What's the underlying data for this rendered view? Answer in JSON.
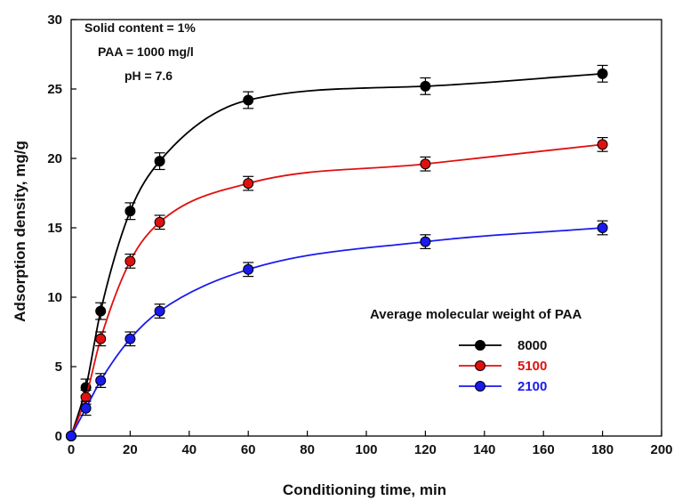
{
  "chart_data": {
    "type": "line",
    "xlabel": "Conditioning time, min",
    "ylabel": "Adsorption density, mg/g",
    "xlim": [
      0,
      200
    ],
    "ylim": [
      0,
      30
    ],
    "xticks": [
      0,
      20,
      40,
      60,
      80,
      100,
      120,
      140,
      160,
      180,
      200
    ],
    "yticks": [
      0,
      5,
      10,
      15,
      20,
      25,
      30
    ],
    "grid": false,
    "legend_title": "Average molecular weight of PAA",
    "legend_position": "center-right",
    "annotations": [
      "Solid content = 1%",
      "PAA = 1000 mg/l",
      "pH = 7.6"
    ],
    "x": [
      0,
      5,
      10,
      20,
      30,
      60,
      120,
      180
    ],
    "series": [
      {
        "name": "8000",
        "color": "#000000",
        "values": [
          0,
          3.5,
          9.0,
          16.2,
          19.8,
          24.2,
          25.2,
          26.1
        ],
        "error": 0.6
      },
      {
        "name": "5100",
        "color": "#e01010",
        "values": [
          0,
          2.8,
          7.0,
          12.6,
          15.4,
          18.2,
          19.6,
          21.0
        ],
        "error": 0.5
      },
      {
        "name": "2100",
        "color": "#1a1aee",
        "values": [
          0,
          2.0,
          4.0,
          7.0,
          9.0,
          12.0,
          14.0,
          15.0
        ],
        "error": 0.5
      }
    ]
  }
}
